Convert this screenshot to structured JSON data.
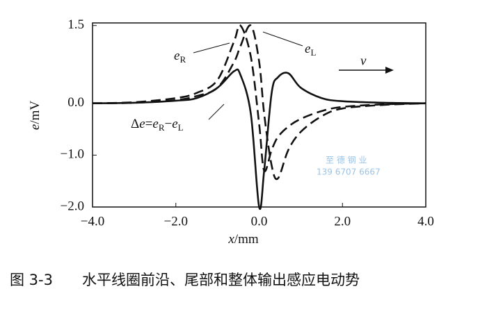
{
  "chart_data": {
    "type": "line",
    "x": [
      -4,
      -3,
      -2,
      -1.5,
      -1,
      -0.6,
      -0.45,
      -0.2,
      0,
      0.12,
      0.3,
      0.45,
      0.7,
      1,
      1.5,
      2,
      3,
      4
    ],
    "series": [
      {
        "name": "eR",
        "color": "#111111",
        "dash": true,
        "values": [
          0,
          0.02,
          0.1,
          0.2,
          0.45,
          1.2,
          1.5,
          0.9,
          -0.4,
          -1.3,
          -0.9,
          -0.65,
          -0.45,
          -0.3,
          -0.15,
          -0.07,
          -0.02,
          0
        ]
      },
      {
        "name": "eL",
        "color": "#111111",
        "dash": true,
        "values": [
          0,
          0.01,
          0.06,
          0.14,
          0.3,
          0.8,
          1.1,
          1.5,
          0.8,
          -0.2,
          -1.2,
          -1.45,
          -0.9,
          -0.55,
          -0.25,
          -0.1,
          -0.03,
          0
        ]
      },
      {
        "name": "Δe",
        "color": "#111111",
        "dash": false,
        "values": [
          0,
          0.01,
          0.05,
          0.1,
          0.3,
          0.62,
          0.55,
          -0.2,
          -2.0,
          -1.3,
          0.2,
          0.5,
          0.58,
          0.3,
          0.1,
          0.04,
          0.01,
          0
        ]
      }
    ],
    "xlim": [
      -4,
      4
    ],
    "ylim": [
      -2,
      1.55
    ],
    "xticks": [
      {
        "value": -4,
        "label": "−4.0"
      },
      {
        "value": -2,
        "label": "−2.0"
      },
      {
        "value": 0,
        "label": "0.0"
      },
      {
        "value": 2,
        "label": "2.0"
      },
      {
        "value": 4,
        "label": "4.0"
      }
    ],
    "yticks": [
      {
        "value": 1.5,
        "label": "1.5"
      },
      {
        "value": 0,
        "label": "0.0"
      },
      {
        "value": -1,
        "label": "−1.0"
      },
      {
        "value": -2,
        "label": "−2.0"
      }
    ],
    "xlabel": [
      "x",
      "/mm"
    ],
    "ylabel": [
      "e",
      "/mV"
    ],
    "label_eR": [
      "e",
      "R"
    ],
    "label_eL": [
      "e",
      "L"
    ],
    "label_delta": [
      "Δ",
      "e",
      "=",
      "e",
      "R",
      "−",
      "e",
      "L"
    ],
    "velocity": "v",
    "grid": false
  },
  "caption": {
    "number": "图 3-3",
    "text": "水平线圈前沿、尾部和整体输出感应电动势"
  },
  "watermark": {
    "name": "至 德 钢 业",
    "phone": "139 6707 6667"
  }
}
